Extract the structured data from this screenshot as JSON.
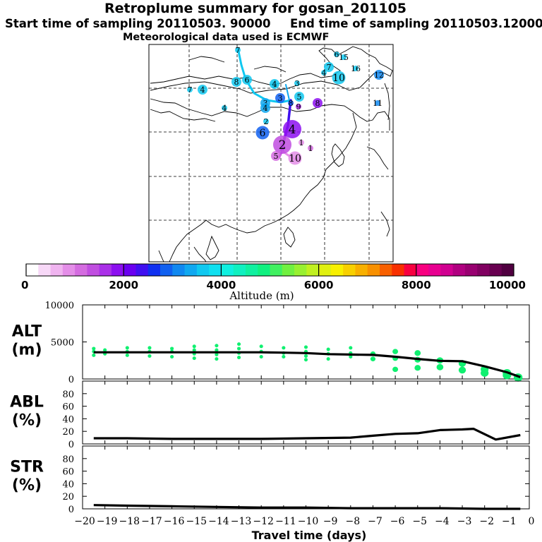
{
  "header": {
    "title": "Retroplume summary for gosan_201105",
    "start_label": "Start time of sampling 20110503. 90000",
    "end_label": "End time of sampling 20110503.120000",
    "met_label": "Meteorological data used is ECMWF"
  },
  "colorbar": {
    "title": "Altitude (m)",
    "ticks": [
      "0",
      "2000",
      "4000",
      "6000",
      "8000",
      "10000"
    ],
    "min": 0,
    "max": 10000,
    "colors": [
      "#ffffff",
      "#f7d8f7",
      "#f0b4f0",
      "#e48ee8",
      "#d46ce0",
      "#c04ee0",
      "#aa30e8",
      "#8c10f0",
      "#6a00f0",
      "#4010f0",
      "#1030f0",
      "#1060f0",
      "#1088f0",
      "#10a8f0",
      "#10c8f0",
      "#10e0f0",
      "#10f0e0",
      "#10f0c0",
      "#10f0a0",
      "#10f080",
      "#40f060",
      "#70f040",
      "#98f030",
      "#c0f020",
      "#e0f010",
      "#f8f000",
      "#f8d000",
      "#f8b000",
      "#f89000",
      "#f86000",
      "#f83000",
      "#f80040",
      "#f80080",
      "#e80090",
      "#d00090",
      "#b00080",
      "#980070",
      "#800060",
      "#680050",
      "#500040"
    ]
  },
  "map": {
    "markers": [
      {
        "label": "7",
        "color": "#10c8f0",
        "size": "s"
      },
      {
        "label": "6",
        "color": "#10c8f0",
        "size": "s"
      },
      {
        "label": "15",
        "color": "#10c8f0",
        "size": "s"
      },
      {
        "label": "7",
        "color": "#10c8f0",
        "size": "m"
      },
      {
        "label": "16",
        "color": "#10c8f0",
        "size": "s"
      },
      {
        "label": "4",
        "color": "#10c8f0",
        "size": "s"
      },
      {
        "label": "10",
        "color": "#10c8f0",
        "size": "l"
      },
      {
        "label": "12",
        "color": "#1088f0",
        "size": "m"
      },
      {
        "label": "7",
        "color": "#10c8f0",
        "size": "s"
      },
      {
        "label": "4",
        "color": "#10c8f0",
        "size": "m"
      },
      {
        "label": "8",
        "color": "#10c8f0",
        "size": "m"
      },
      {
        "label": "6",
        "color": "#10c8f0",
        "size": "m"
      },
      {
        "label": "5",
        "color": "#10c8f0",
        "size": "s"
      },
      {
        "label": "3",
        "color": "#10c8f0",
        "size": "s"
      },
      {
        "label": "4",
        "color": "#10c8f0",
        "size": "m"
      },
      {
        "label": "5",
        "color": "#10c8f0",
        "size": "m"
      },
      {
        "label": "3",
        "color": "#1060f0",
        "size": "m"
      },
      {
        "label": "3",
        "color": "#10a8f0",
        "size": "m"
      },
      {
        "label": "8",
        "color": "#8c10f0",
        "size": "m"
      },
      {
        "label": "8",
        "color": "#1060f0",
        "size": "s"
      },
      {
        "label": "4",
        "color": "#10a8f0",
        "size": "m"
      },
      {
        "label": "9",
        "color": "#aa30e8",
        "size": "s"
      },
      {
        "label": "11",
        "color": "#1088f0",
        "size": "s"
      },
      {
        "label": "4",
        "color": "#10c8f0",
        "size": "s"
      },
      {
        "label": "2",
        "color": "#10c8f0",
        "size": "s"
      },
      {
        "label": "6",
        "color": "#1060f0",
        "size": "l"
      },
      {
        "label": "4",
        "color": "#8c10f0",
        "size": "xl"
      },
      {
        "label": "2",
        "color": "#c04ee0",
        "size": "xl"
      },
      {
        "label": "1",
        "color": "#e48ee8",
        "size": "s"
      },
      {
        "label": "1",
        "color": "#d46ce0",
        "size": "s"
      },
      {
        "label": "5",
        "color": "#d46ce0",
        "size": "m"
      },
      {
        "label": "10",
        "color": "#e48ee8",
        "size": "l"
      }
    ]
  },
  "chart_data": [
    {
      "type": "line",
      "name": "alt",
      "ylabel": "ALT\n(m)",
      "ylabel_lines": [
        "ALT",
        "(m)"
      ],
      "ylim": [
        0,
        10000
      ],
      "yticks": [
        "10000",
        "5000",
        "0"
      ],
      "ytick_values": [
        10000,
        5000,
        0
      ],
      "x": [
        -19.5,
        -19,
        -18,
        -17,
        -16,
        -15,
        -14,
        -13,
        -12,
        -11,
        -10,
        -9,
        -8,
        -7,
        -6,
        -5,
        -4,
        -3,
        -2,
        -1,
        -0.4
      ],
      "series": [
        {
          "name": "mean altitude",
          "values": [
            3600,
            3600,
            3600,
            3600,
            3600,
            3600,
            3600,
            3600,
            3600,
            3550,
            3500,
            3350,
            3300,
            3250,
            3000,
            2700,
            2450,
            2400,
            1700,
            900,
            250
          ]
        }
      ],
      "scatter_x": [
        -19.5,
        -19.5,
        -19.5,
        -19,
        -19,
        -18,
        -18,
        -18,
        -17,
        -17,
        -17,
        -16,
        -16,
        -16,
        -15,
        -15,
        -15,
        -15,
        -14,
        -14,
        -14,
        -14,
        -13,
        -13,
        -13,
        -13,
        -12,
        -12,
        -12,
        -11,
        -11,
        -11,
        -10,
        -10,
        -10,
        -10,
        -9,
        -9,
        -9,
        -8,
        -8,
        -8,
        -7,
        -7,
        -6,
        -6,
        -6,
        -5,
        -5,
        -5,
        -4,
        -4,
        -3,
        -3,
        -2,
        -2,
        -1,
        -1,
        -0.5
      ],
      "scatter_y": [
        3200,
        3700,
        4100,
        3400,
        3900,
        3200,
        3700,
        4200,
        3100,
        3700,
        4200,
        3000,
        3700,
        4100,
        2800,
        3400,
        3900,
        4400,
        2700,
        3300,
        3900,
        4500,
        2900,
        3500,
        4100,
        4700,
        3000,
        3700,
        4400,
        3000,
        3500,
        4200,
        2600,
        3100,
        3700,
        4300,
        2700,
        3400,
        4000,
        3000,
        3500,
        4200,
        2700,
        3400,
        1300,
        2800,
        3700,
        1500,
        2600,
        3500,
        1600,
        2500,
        1200,
        2100,
        800,
        1300,
        500,
        800,
        200
      ]
    },
    {
      "type": "line",
      "name": "abl",
      "ylabel": "ABL\n(%)",
      "ylabel_lines": [
        "ABL",
        "(%)"
      ],
      "ylim": [
        0,
        100
      ],
      "yticks": [
        "80",
        "60",
        "40",
        "20",
        "0"
      ],
      "ytick_values": [
        80,
        60,
        40,
        20,
        0
      ],
      "x": [
        -19.5,
        -18,
        -16,
        -14,
        -12,
        -10,
        -8,
        -7,
        -6,
        -5,
        -4,
        -3,
        -2.5,
        -1.5,
        -0.4
      ],
      "series": [
        {
          "name": "ABL fraction",
          "values": [
            9,
            9,
            8,
            8,
            8,
            9,
            10,
            13,
            16,
            17,
            22,
            23,
            24,
            7,
            14
          ]
        }
      ]
    },
    {
      "type": "line",
      "name": "str",
      "ylabel": "STR\n(%)",
      "ylabel_lines": [
        "STR",
        "(%)"
      ],
      "ylim": [
        0,
        100
      ],
      "yticks": [
        "80",
        "60",
        "40",
        "20",
        "0"
      ],
      "ytick_values": [
        80,
        60,
        40,
        20,
        0
      ],
      "xlabel": "Travel time (days)",
      "xlim": [
        -20,
        0
      ],
      "xticks": [
        "−20",
        "−19",
        "−18",
        "−17",
        "−16",
        "−15",
        "−14",
        "−13",
        "−12",
        "−11",
        "−10",
        "−9",
        "−8",
        "−7",
        "−6",
        "−5",
        "−4",
        "−3",
        "−2",
        "−1",
        "0"
      ],
      "x": [
        -19.5,
        -18,
        -16,
        -14,
        -12,
        -10,
        -8,
        -6,
        -4,
        -2,
        -0.4
      ],
      "series": [
        {
          "name": "stratospheric fraction",
          "values": [
            6,
            5,
            4,
            3,
            2,
            2,
            1,
            1,
            1,
            0,
            0
          ]
        }
      ]
    }
  ]
}
